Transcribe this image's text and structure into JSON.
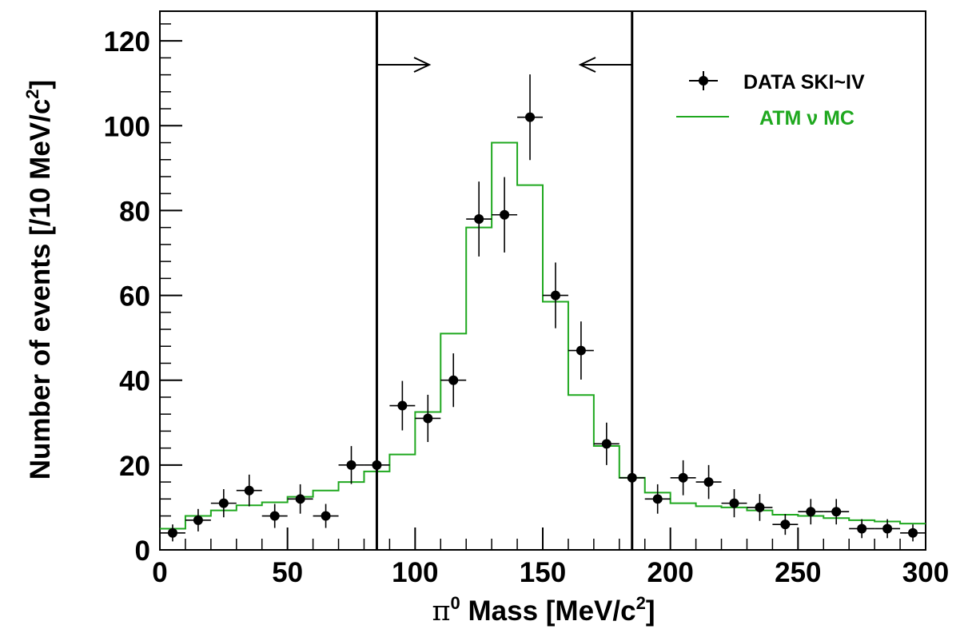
{
  "chart_data": {
    "type": "scatter",
    "xlabel_prefix": "π",
    "xlabel_sup": "0",
    "xlabel_main": " Mass [MeV/c",
    "xlabel_sup2": "2",
    "xlabel_close": "]",
    "ylabel_main": "Number of events [/10 MeV/c",
    "ylabel_sup": "2",
    "ylabel_close": "]",
    "xlim": [
      0,
      300
    ],
    "ylim": [
      0,
      127
    ],
    "x_ticks": [
      "0",
      "50",
      "100",
      "150",
      "200",
      "250",
      "300"
    ],
    "y_ticks": [
      "0",
      "20",
      "40",
      "60",
      "80",
      "100",
      "120"
    ],
    "cut_lines": [
      85,
      185
    ],
    "grid": false,
    "legend_position": "top-right",
    "series": [
      {
        "name": "DATA SKI~IV",
        "kind": "points-with-errors",
        "color": "#000000",
        "x": [
          5,
          15,
          25,
          35,
          45,
          55,
          65,
          75,
          85,
          95,
          105,
          115,
          125,
          135,
          145,
          155,
          165,
          175,
          185,
          195,
          205,
          215,
          225,
          235,
          245,
          255,
          265,
          275,
          285,
          295
        ],
        "y": [
          4,
          7,
          11,
          14,
          8,
          12,
          8,
          20,
          20,
          34,
          31,
          40,
          78,
          79,
          102,
          60,
          47,
          25,
          17,
          12,
          17,
          16,
          11,
          10,
          6,
          9,
          9,
          5,
          5,
          4
        ]
      },
      {
        "name": "ATM ν MC",
        "kind": "step-histogram",
        "color": "#1fa81f",
        "bin_edges": [
          0,
          10,
          20,
          30,
          40,
          50,
          60,
          70,
          80,
          90,
          100,
          110,
          120,
          130,
          140,
          150,
          160,
          170,
          180,
          190,
          200,
          210,
          220,
          230,
          240,
          250,
          260,
          270,
          280,
          290,
          300
        ],
        "values": [
          5,
          8,
          9.3,
          10.5,
          11.2,
          12.5,
          14,
          16,
          18.5,
          22.5,
          32.5,
          51,
          76,
          96,
          86,
          58.5,
          36.5,
          24.5,
          17,
          13.5,
          11,
          10.3,
          10,
          9.3,
          8.3,
          8,
          7.5,
          7,
          6.7,
          6.2
        ]
      }
    ]
  }
}
